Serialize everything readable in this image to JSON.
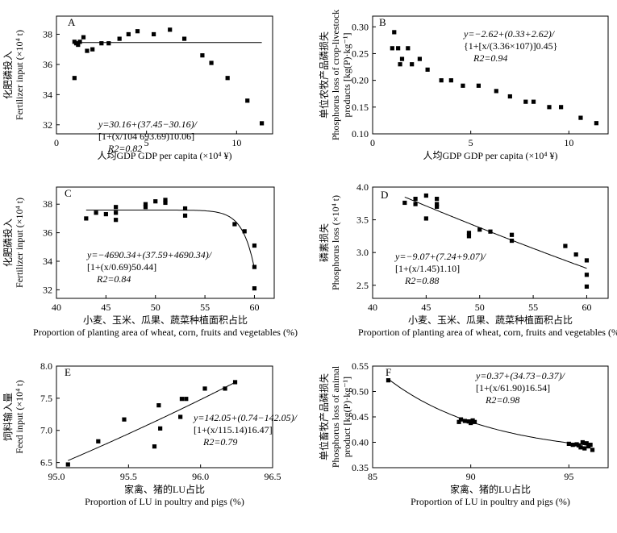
{
  "chart_data": [
    {
      "panel": "A",
      "type": "scatter",
      "xlabel": "人均GDP GDP per capita (×10⁴ ¥)",
      "ylabel_cn": "化肥磷投入",
      "ylabel_en": "Fertilizer input (×10⁴ t)",
      "xlim": [
        0,
        12
      ],
      "ylim": [
        31.4,
        39.2
      ],
      "xticks": [
        0,
        5,
        10
      ],
      "yticks": [
        32,
        34,
        36,
        38
      ],
      "points": [
        [
          1.0,
          35.1
        ],
        [
          1.0,
          37.5
        ],
        [
          1.1,
          37.4
        ],
        [
          1.2,
          37.3
        ],
        [
          1.3,
          37.5
        ],
        [
          1.5,
          37.8
        ],
        [
          1.7,
          36.9
        ],
        [
          2.0,
          37.0
        ],
        [
          2.5,
          37.4
        ],
        [
          2.9,
          37.4
        ],
        [
          3.5,
          37.7
        ],
        [
          4.0,
          38.0
        ],
        [
          4.5,
          38.2
        ],
        [
          5.4,
          38.0
        ],
        [
          6.3,
          38.3
        ],
        [
          7.1,
          37.7
        ],
        [
          8.1,
          36.6
        ],
        [
          8.6,
          36.1
        ],
        [
          9.5,
          35.1
        ],
        [
          10.6,
          33.6
        ],
        [
          11.4,
          32.1
        ]
      ],
      "curve": {
        "a": 30.16,
        "b": 37.45,
        "c": 104693.69,
        "d": 10.06
      },
      "equation": [
        "y=30.16+(37.45−30.16)/",
        "[1+(x/104 693.69)10.06]",
        "R2=0.82"
      ]
    },
    {
      "panel": "B",
      "type": "scatter",
      "xlabel": "人均GDP GDP per capita (×10⁴ ¥)",
      "ylabel_cn": "单位农牧产品磷损失",
      "ylabel_en": "Phosphorus loss of crop-livestock",
      "ylabel_en2": "products [kg(P)·kg⁻¹]",
      "xlim": [
        0,
        12
      ],
      "ylim": [
        0.1,
        0.32
      ],
      "xticks": [
        0,
        5,
        10
      ],
      "yticks": [
        0.1,
        0.15,
        0.2,
        0.25,
        0.3
      ],
      "points": [
        [
          1.0,
          0.26
        ],
        [
          1.1,
          0.29
        ],
        [
          1.3,
          0.26
        ],
        [
          1.4,
          0.23
        ],
        [
          1.5,
          0.24
        ],
        [
          1.8,
          0.26
        ],
        [
          2.0,
          0.23
        ],
        [
          2.4,
          0.24
        ],
        [
          2.8,
          0.22
        ],
        [
          3.5,
          0.2
        ],
        [
          4.0,
          0.2
        ],
        [
          4.6,
          0.19
        ],
        [
          5.4,
          0.19
        ],
        [
          6.3,
          0.18
        ],
        [
          7.0,
          0.17
        ],
        [
          7.8,
          0.16
        ],
        [
          8.2,
          0.16
        ],
        [
          9.0,
          0.15
        ],
        [
          9.6,
          0.15
        ],
        [
          10.6,
          0.13
        ],
        [
          11.4,
          0.12
        ]
      ],
      "curve": {
        "a": -2.62,
        "b": 0.33,
        "c": 33600000.0,
        "d": 0.45
      },
      "equation": [
        "y=−2.62+(0.33+2.62)/",
        "{1+[x/(3.36×107)]0.45}",
        "R2=0.94"
      ]
    },
    {
      "panel": "C",
      "type": "scatter",
      "xlabel_cn": "小麦、玉米、瓜果、蔬菜种植面积占比",
      "xlabel_en": "Proportion of planting area of wheat, corn, fruits and vegetables (%)",
      "ylabel_cn": "化肥磷投入",
      "ylabel_en": "Fertilizer input (×10⁴ t)",
      "xlim": [
        40,
        62
      ],
      "ylim": [
        31.4,
        39.2
      ],
      "xticks": [
        40,
        45,
        50,
        55,
        60
      ],
      "yticks": [
        32,
        34,
        36,
        38
      ],
      "points": [
        [
          43.0,
          37.0
        ],
        [
          44.0,
          37.4
        ],
        [
          45.0,
          37.3
        ],
        [
          46.0,
          36.9
        ],
        [
          46.0,
          37.4
        ],
        [
          46.0,
          37.8
        ],
        [
          49.0,
          37.8
        ],
        [
          49.0,
          38.0
        ],
        [
          50.0,
          38.2
        ],
        [
          51.0,
          38.3
        ],
        [
          51.0,
          38.1
        ],
        [
          53.0,
          37.7
        ],
        [
          53.0,
          37.2
        ],
        [
          58.0,
          36.6
        ],
        [
          59.0,
          36.1
        ],
        [
          60.0,
          35.1
        ],
        [
          60.0,
          33.6
        ],
        [
          60.0,
          32.1
        ]
      ],
      "curve": {
        "a": -4690.34,
        "b": 37.59,
        "c": 0.69,
        "d": 50.44,
        "xscale": 100
      },
      "equation": [
        "y=−4690.34+(37.59+4690.34)/",
        "[1+(x/0.69)50.44]",
        "R2=0.84"
      ]
    },
    {
      "panel": "D",
      "type": "scatter",
      "xlabel_cn": "小麦、玉米、瓜果、蔬菜种植面积占比",
      "xlabel_en": "Proportion of planting area of wheat, corn, fruits and vegetables (%)",
      "ylabel_cn": "磷素损失",
      "ylabel_en": "Phosphorus loss (×10⁴ t)",
      "xlim": [
        40,
        62
      ],
      "ylim": [
        2.3,
        4.0
      ],
      "xticks": [
        40,
        45,
        50,
        55,
        60
      ],
      "yticks": [
        2.5,
        3.0,
        3.5,
        4.0
      ],
      "points": [
        [
          43.0,
          3.76
        ],
        [
          44.0,
          3.82
        ],
        [
          44.0,
          3.74
        ],
        [
          45.0,
          3.87
        ],
        [
          45.0,
          3.52
        ],
        [
          46.0,
          3.82
        ],
        [
          46.0,
          3.74
        ],
        [
          46.0,
          3.7
        ],
        [
          49.0,
          3.3
        ],
        [
          49.0,
          3.25
        ],
        [
          50.0,
          3.35
        ],
        [
          51.0,
          3.32
        ],
        [
          53.0,
          3.27
        ],
        [
          53.0,
          3.18
        ],
        [
          58.0,
          3.1
        ],
        [
          59.0,
          2.97
        ],
        [
          60.0,
          2.88
        ],
        [
          60.0,
          2.66
        ],
        [
          60.0,
          2.48
        ]
      ],
      "curve": {
        "a": -9.07,
        "b": 7.24,
        "c": 1.45,
        "d": 1.1,
        "xscale": 100
      },
      "equation": [
        "y=−9.07+(7.24+9.07)/",
        "[1+(x/1.45)1.10]",
        "R2=0.88"
      ]
    },
    {
      "panel": "E",
      "type": "scatter",
      "xlabel_cn": "家禽、猪的LU占比",
      "xlabel_en": "Proportion of LU in poultry and pigs (%)",
      "ylabel_cn": "饲料输入量",
      "ylabel_en": "Feed input (×10⁴ t)",
      "xlim": [
        95.0,
        96.5
      ],
      "ylim": [
        6.42,
        8.0
      ],
      "xticks": [
        95.0,
        95.5,
        96.0,
        96.5
      ],
      "yticks": [
        6.5,
        7.0,
        7.5,
        8.0
      ],
      "points": [
        [
          95.08,
          6.47
        ],
        [
          95.29,
          6.83
        ],
        [
          95.47,
          7.17
        ],
        [
          95.68,
          6.75
        ],
        [
          95.71,
          7.39
        ],
        [
          95.72,
          7.03
        ],
        [
          95.86,
          7.21
        ],
        [
          95.87,
          7.49
        ],
        [
          95.9,
          7.49
        ],
        [
          96.03,
          7.65
        ],
        [
          96.17,
          7.65
        ],
        [
          96.24,
          7.75
        ]
      ],
      "curve": {
        "a": 142.05,
        "b": 0.74,
        "c": 115.14,
        "d": 16.47
      },
      "equation": [
        "y=142.05+(0.74−142.05)/",
        "[1+(x/115.14)16.47]",
        "R2=0.79"
      ]
    },
    {
      "panel": "F",
      "type": "scatter",
      "xlabel_cn": "家禽、猪的LU占比",
      "xlabel_en": "Proportion of LU in poultry and pigs (%)",
      "ylabel_cn": "单位畜牧产品磷损失",
      "ylabel_en": "Phosphorus loss of animal",
      "ylabel_en2": "product [kg(P)·kg⁻¹]",
      "xlim": [
        85,
        97
      ],
      "ylim": [
        0.35,
        0.55
      ],
      "xticks": [
        85,
        90,
        95
      ],
      "yticks": [
        0.35,
        0.4,
        0.45,
        0.5,
        0.55
      ],
      "points": [
        [
          85.8,
          0.522
        ],
        [
          89.4,
          0.44
        ],
        [
          89.5,
          0.445
        ],
        [
          89.7,
          0.442
        ],
        [
          89.9,
          0.441
        ],
        [
          90.0,
          0.438
        ],
        [
          90.1,
          0.443
        ],
        [
          90.2,
          0.44
        ],
        [
          95.0,
          0.397
        ],
        [
          95.2,
          0.395
        ],
        [
          95.4,
          0.396
        ],
        [
          95.5,
          0.394
        ],
        [
          95.6,
          0.39
        ],
        [
          95.7,
          0.4
        ],
        [
          95.8,
          0.388
        ],
        [
          95.9,
          0.398
        ],
        [
          96.0,
          0.392
        ],
        [
          96.1,
          0.395
        ],
        [
          96.2,
          0.385
        ]
      ],
      "curve": {
        "a": 0.37,
        "b": 34.73,
        "c": 61.9,
        "d": 16.54
      },
      "equation": [
        "y=0.37+(34.73−0.37)/",
        "[1+(x/61.90)16.54]",
        "R2=0.98"
      ]
    }
  ]
}
